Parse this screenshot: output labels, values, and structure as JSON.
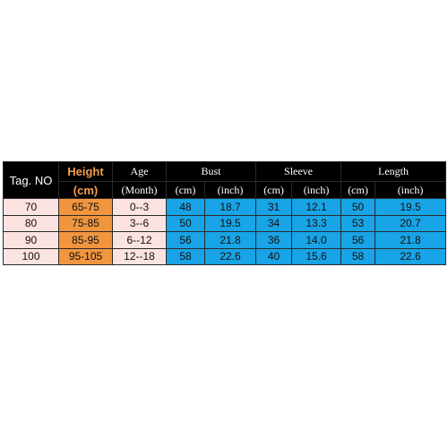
{
  "header": {
    "row1": [
      "Tag. NO",
      "Height",
      "Age",
      "Bust",
      "Sleeve",
      "Length"
    ],
    "row2": [
      "(cm)",
      "(Month)",
      "(cm)",
      "(inch)",
      "(cm)",
      "(inch)",
      "(cm)",
      "(inch)"
    ]
  },
  "rows": [
    [
      "70",
      "65-75",
      "0--3",
      "48",
      "18.7",
      "31",
      "12.1",
      "50",
      "19.5"
    ],
    [
      "80",
      "75-85",
      "3--6",
      "50",
      "19.5",
      "34",
      "13.3",
      "53",
      "20.7"
    ],
    [
      "90",
      "85-95",
      "6--12",
      "56",
      "21.8",
      "36",
      "14.0",
      "56",
      "21.8"
    ],
    [
      "100",
      "95-105",
      "12--18",
      "58",
      "22.6",
      "40",
      "15.6",
      "58",
      "22.6"
    ]
  ]
}
